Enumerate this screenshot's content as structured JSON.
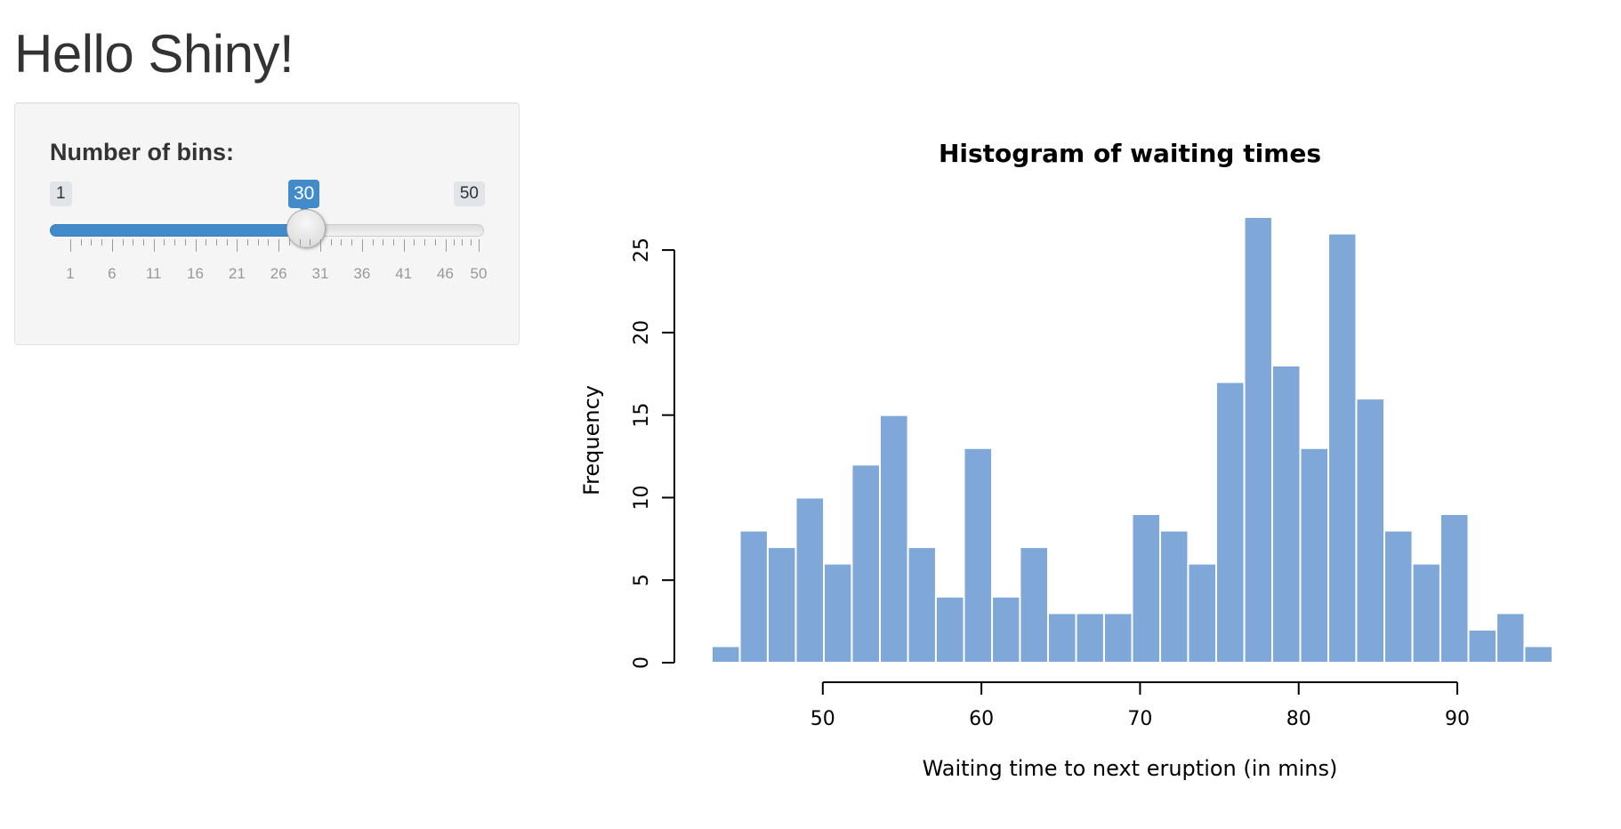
{
  "page": {
    "title": "Hello Shiny!"
  },
  "sidebar": {
    "slider": {
      "label": "Number of bins:",
      "min_label": "1",
      "max_label": "50",
      "value_label": "30",
      "value": 30,
      "min": 1,
      "max": 50,
      "grid_labels": [
        "1",
        "6",
        "11",
        "16",
        "21",
        "26",
        "31",
        "36",
        "41",
        "46",
        "50"
      ],
      "grid_values": [
        1,
        6,
        11,
        16,
        21,
        26,
        31,
        36,
        41,
        46,
        50
      ],
      "accent_color": "#428bca"
    }
  },
  "chart_data": {
    "type": "bar",
    "title": "Histogram of waiting times",
    "xlabel": "Waiting time to next eruption (in mins)",
    "ylabel": "Frequency",
    "bin_edges": [
      43,
      44.77,
      46.53,
      48.3,
      50.07,
      51.83,
      53.6,
      55.37,
      57.13,
      58.9,
      60.67,
      62.43,
      64.2,
      65.97,
      67.73,
      69.5,
      71.27,
      73.03,
      74.8,
      76.57,
      78.33,
      80.1,
      81.87,
      83.63,
      85.4,
      87.17,
      88.93,
      90.7,
      92.47,
      94.23,
      96
    ],
    "values": [
      1,
      8,
      7,
      10,
      6,
      12,
      15,
      7,
      4,
      13,
      4,
      7,
      3,
      3,
      3,
      9,
      8,
      6,
      17,
      27,
      18,
      13,
      26,
      16,
      8,
      6,
      9,
      2,
      3,
      1
    ],
    "xticks": [
      "50",
      "60",
      "70",
      "80",
      "90"
    ],
    "xtick_values": [
      50,
      60,
      70,
      80,
      90
    ],
    "yticks": [
      "0",
      "5",
      "10",
      "15",
      "20",
      "25"
    ],
    "ytick_values": [
      0,
      5,
      10,
      15,
      20,
      25
    ],
    "xlim": [
      43,
      96
    ],
    "ylim": [
      0,
      27
    ],
    "bar_color": "#7fa8d8",
    "grid": false
  }
}
